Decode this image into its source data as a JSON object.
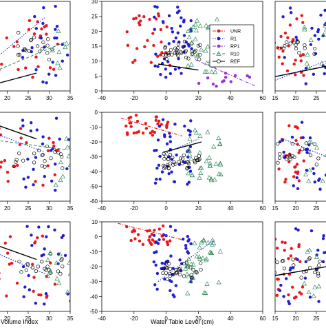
{
  "figure": {
    "left_axis_label": "Volume Index",
    "center_axis_label": "Water Table Level (cm)"
  },
  "legend": {
    "items": [
      {
        "label": "UNR",
        "color": "#e8191e",
        "marker": "filled-circle",
        "line": "dash-dot"
      },
      {
        "label": "R1",
        "color": "#1f1fd1",
        "marker": "filled-circle",
        "line": "dotted"
      },
      {
        "label": "RP1",
        "color": "#9b30d9",
        "marker": "filled-circle",
        "line": "dash-dot"
      },
      {
        "label": "R10",
        "color": "#2e8b57",
        "marker": "open-triangle",
        "line": "dashed"
      },
      {
        "label": "REF",
        "color": "#000000",
        "marker": "open-circle",
        "line": "solid"
      }
    ]
  },
  "chart_data": [
    {
      "type": "scatter",
      "position": "top-left",
      "xlabel": "",
      "ylabel": "",
      "xlim": [
        15,
        35
      ],
      "xticks": [
        20,
        25,
        30,
        35
      ],
      "yticks": [],
      "fit_lines": [
        {
          "series": "R1",
          "x": [
            15,
            29
          ],
          "y_rel": [
            0.72,
            0.18
          ]
        },
        {
          "series": "R10",
          "x": [
            15,
            34
          ],
          "y_rel": [
            0.82,
            0.45
          ]
        },
        {
          "series": "REF",
          "x": [
            15,
            27
          ],
          "y_rel": [
            0.95,
            0.8
          ]
        }
      ]
    },
    {
      "type": "scatter",
      "position": "top-center",
      "xlabel": "",
      "ylabel": "",
      "xlim": [
        -40,
        60
      ],
      "ylim": [
        0,
        30
      ],
      "xticks": [
        -40,
        -20,
        0,
        20,
        40,
        60
      ],
      "yticks": [
        0,
        5,
        10,
        15,
        20,
        25,
        30
      ],
      "fit_lines": [
        {
          "series": "RP1",
          "x": [
            18,
            56
          ],
          "y": [
            10.5,
            1.5
          ]
        },
        {
          "series": "REF",
          "x": [
            -5,
            20
          ],
          "y": [
            9,
            7
          ]
        }
      ]
    },
    {
      "type": "scatter",
      "position": "top-right",
      "xlabel": "",
      "ylabel": "",
      "xlim": [
        15,
        30
      ],
      "xticks": [
        15,
        20,
        25
      ],
      "yticks": [],
      "fit_lines": [
        {
          "series": "REF",
          "x": [
            15,
            30
          ],
          "y_rel": [
            0.84,
            0.7
          ]
        },
        {
          "series": "R1",
          "x": [
            15,
            30
          ],
          "y_rel": [
            0.88,
            0.62
          ]
        }
      ]
    },
    {
      "type": "scatter",
      "position": "middle-left",
      "xlabel": "",
      "ylabel": "",
      "xlim": [
        15,
        35
      ],
      "xticks": [
        20,
        25,
        30,
        35
      ],
      "yticks": [],
      "fit_lines": [
        {
          "series": "REF",
          "x": [
            15,
            27
          ],
          "y_rel": [
            0.1,
            0.3
          ]
        },
        {
          "series": "R1",
          "x": [
            15,
            29
          ],
          "y_rel": [
            0.2,
            0.45
          ]
        },
        {
          "series": "R10",
          "x": [
            15,
            34
          ],
          "y_rel": [
            0.3,
            0.42
          ]
        }
      ]
    },
    {
      "type": "scatter",
      "position": "middle-center",
      "xlabel": "",
      "ylabel": "",
      "xlim": [
        -40,
        60
      ],
      "ylim": [
        -60,
        0
      ],
      "xticks": [
        -40,
        -20,
        0,
        20,
        40,
        60
      ],
      "yticks": [
        0,
        -10,
        -20,
        -30,
        -40,
        -50,
        -60
      ],
      "fit_lines": [
        {
          "series": "UNR",
          "x": [
            -28,
            10
          ],
          "y": [
            -4,
            -16
          ]
        },
        {
          "series": "REF",
          "x": [
            -2,
            22
          ],
          "y": [
            -27,
            -20
          ]
        },
        {
          "series": "R1",
          "x": [
            -5,
            20
          ],
          "y": [
            -30,
            -18
          ]
        }
      ]
    },
    {
      "type": "scatter",
      "position": "middle-right",
      "xlabel": "",
      "ylabel": "",
      "xlim": [
        15,
        30
      ],
      "xticks": [
        15,
        20,
        25
      ],
      "yticks": [],
      "fit_lines": [
        {
          "series": "R1",
          "x": [
            17,
            30
          ],
          "y_rel": [
            0.3,
            0.55
          ]
        }
      ]
    },
    {
      "type": "scatter",
      "position": "bottom-left",
      "xlabel": "Volume Index",
      "ylabel": "",
      "xlim": [
        15,
        35
      ],
      "xticks": [
        20,
        25,
        30,
        35
      ],
      "yticks": [],
      "fit_lines": [
        {
          "series": "REF",
          "x": [
            15,
            27
          ],
          "y_rel": [
            0.22,
            0.42
          ]
        },
        {
          "series": "R1",
          "x": [
            15,
            29
          ],
          "y_rel": [
            0.3,
            0.58
          ]
        }
      ]
    },
    {
      "type": "scatter",
      "position": "bottom-center",
      "xlabel": "Water Table Level (cm)",
      "ylabel": "",
      "xlim": [
        -40,
        60
      ],
      "ylim": [
        -50,
        10
      ],
      "xticks": [
        -40,
        -20,
        0,
        20,
        40,
        60
      ],
      "yticks": [
        10,
        0,
        -10,
        -20,
        -30,
        -40,
        -50
      ],
      "fit_lines": [
        {
          "series": "UNR",
          "x": [
            -30,
            10
          ],
          "y": [
            9,
            -2
          ]
        },
        {
          "series": "R1",
          "x": [
            -5,
            30
          ],
          "y": [
            -30,
            -2
          ]
        }
      ]
    },
    {
      "type": "scatter",
      "position": "bottom-right",
      "xlabel": "",
      "ylabel": "",
      "xlim": [
        15,
        30
      ],
      "xticks": [
        15,
        20,
        25
      ],
      "yticks": [],
      "fit_lines": [
        {
          "series": "REF",
          "x": [
            15,
            30
          ],
          "y_rel": [
            0.6,
            0.48
          ]
        }
      ]
    }
  ]
}
